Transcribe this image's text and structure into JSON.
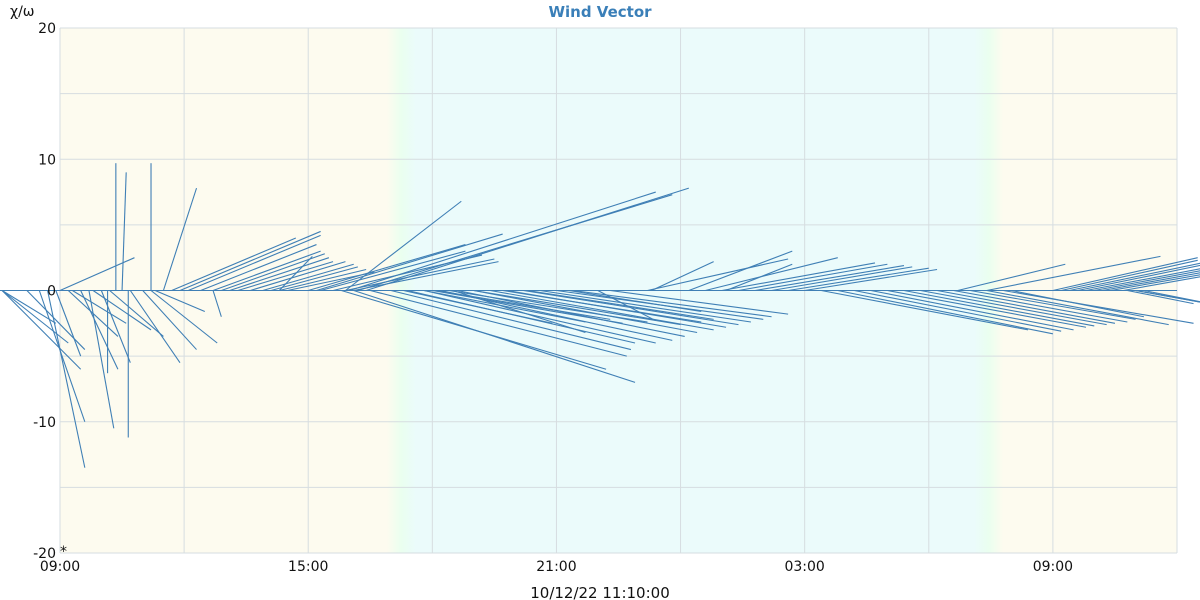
{
  "chart_data": {
    "type": "vector",
    "title": "Wind Vector",
    "ylabel": "χ/ω",
    "xlabel": "10/12/22 11:10:00",
    "corner_mark": "*",
    "ylim": [
      -20,
      20
    ],
    "y_ticks": [
      "20",
      "10",
      "0",
      "-10",
      "-20"
    ],
    "y_tick_values": [
      20,
      10,
      0,
      -10,
      -20
    ],
    "x_range_hours": [
      0,
      27
    ],
    "x_ticks": [
      "09:00",
      "15:00",
      "21:00",
      "03:00",
      "09:00"
    ],
    "x_tick_hours": [
      0,
      6,
      12,
      18,
      24
    ],
    "grid": true,
    "background_bands": [
      {
        "from": 0,
        "to": 7.9,
        "color": "#fdfbef"
      },
      {
        "from": 8.6,
        "to": 22.1,
        "color": "#ebfbfb"
      },
      {
        "from": 22.8,
        "to": 27,
        "color": "#fdfbef"
      }
    ],
    "line_color": "#3f7fb5",
    "vectors": [
      [
        -1.4,
        0,
        1.6,
        -4
      ],
      [
        -1.4,
        0,
        1.9,
        -6
      ],
      [
        -1.4,
        0,
        1.3,
        -2.5
      ],
      [
        -0.8,
        0,
        1.4,
        -4.5
      ],
      [
        -0.3,
        0,
        0.9,
        -13.5
      ],
      [
        -0.5,
        0,
        1.1,
        -10
      ],
      [
        -0.1,
        0,
        0.6,
        -5
      ],
      [
        0.2,
        0,
        1.2,
        -3.5
      ],
      [
        0.5,
        0,
        0.9,
        -6
      ],
      [
        0.3,
        0,
        1.3,
        -2.5
      ],
      [
        1.0,
        0,
        0.7,
        -5.5
      ],
      [
        0.8,
        0,
        1.4,
        -3
      ],
      [
        0.7,
        0,
        0.6,
        -10.5
      ],
      [
        1.2,
        0,
        1.3,
        -3.5
      ],
      [
        0,
        0,
        1.8,
        2.5
      ],
      [
        1.5,
        0,
        0.1,
        9
      ],
      [
        1.35,
        0,
        0,
        9.7
      ],
      [
        1.15,
        0,
        0,
        -6.3
      ],
      [
        1.65,
        0,
        0,
        -11.2
      ],
      [
        1.7,
        0,
        1.2,
        -5.5
      ],
      [
        2.0,
        0,
        1.3,
        -4.5
      ],
      [
        2.2,
        0,
        1.6,
        -4
      ],
      [
        2.2,
        0,
        0,
        9.7
      ],
      [
        2.5,
        0,
        0.8,
        7.8
      ],
      [
        2.7,
        0,
        3.0,
        4
      ],
      [
        2.9,
        0,
        3.4,
        4.5
      ],
      [
        3.1,
        0,
        3.2,
        4.2
      ],
      [
        3.4,
        0,
        2.8,
        3.5
      ],
      [
        3.7,
        0,
        2.6,
        3
      ],
      [
        3.9,
        0,
        2.5,
        2.8
      ],
      [
        4.1,
        0,
        2.4,
        2.5
      ],
      [
        4.3,
        0,
        2.3,
        2.2
      ],
      [
        4.6,
        0,
        2.3,
        2.2
      ],
      [
        4.9,
        0,
        2.2,
        2
      ],
      [
        5.1,
        0,
        2.1,
        1.8
      ],
      [
        5.3,
        0,
        2.1,
        1.6
      ],
      [
        5.5,
        0,
        2.1,
        1.4
      ],
      [
        5.3,
        0,
        0.8,
        2.6
      ],
      [
        6.2,
        0,
        4.5,
        4.3
      ],
      [
        6.0,
        0,
        3.8,
        3.5
      ],
      [
        6.3,
        0,
        3.5,
        3
      ],
      [
        6.6,
        0,
        3.6,
        2.7
      ],
      [
        6.9,
        0,
        3.6,
        2.4
      ],
      [
        7.1,
        0,
        3.5,
        2.2
      ],
      [
        6.9,
        0,
        2.8,
        6.8
      ],
      [
        7.0,
        0,
        7.4,
        7.5
      ],
      [
        7.2,
        0,
        7.6,
        7.3
      ],
      [
        7.4,
        0,
        7.8,
        7.8
      ],
      [
        6.8,
        0,
        6.4,
        -6
      ],
      [
        7.1,
        0,
        6.8,
        -7
      ],
      [
        7.5,
        0,
        6.2,
        -5
      ],
      [
        8.0,
        0,
        5.8,
        -4.5
      ],
      [
        8.4,
        0,
        5.5,
        -4
      ],
      [
        8.8,
        0,
        5.6,
        -4
      ],
      [
        9.2,
        0,
        5.6,
        -3.8
      ],
      [
        9.6,
        0,
        5.5,
        -3.5
      ],
      [
        10.0,
        0,
        5.4,
        -3.2
      ],
      [
        10.4,
        0,
        5.4,
        -3
      ],
      [
        10.8,
        0,
        5.3,
        -2.8
      ],
      [
        11.2,
        0,
        5.2,
        -2.6
      ],
      [
        11.6,
        0,
        5.1,
        -2.4
      ],
      [
        12.0,
        0,
        5.0,
        -2.2
      ],
      [
        12.4,
        0,
        4.8,
        -2
      ],
      [
        9.0,
        0,
        4.6,
        -2.5
      ],
      [
        9.4,
        0,
        4.8,
        -2.4
      ],
      [
        9.5,
        0,
        3.2,
        -3.2
      ],
      [
        10.0,
        0,
        5.0,
        -2.6
      ],
      [
        10.7,
        0,
        4.8,
        -2.4
      ],
      [
        11.3,
        0,
        4.5,
        -2.2
      ],
      [
        12.3,
        0,
        3.2,
        -1.6
      ],
      [
        13.3,
        0,
        4.3,
        -1.8
      ],
      [
        14.2,
        0,
        3.4,
        2.4
      ],
      [
        15.2,
        0,
        2.5,
        3
      ],
      [
        15.6,
        0,
        3.2,
        2.5
      ],
      [
        16.0,
        0,
        3.7,
        2.1
      ],
      [
        16.4,
        0,
        3.6,
        2
      ],
      [
        16.8,
        0,
        3.6,
        1.9
      ],
      [
        17.2,
        0,
        3.4,
        1.8
      ],
      [
        17.6,
        0,
        3.4,
        1.7
      ],
      [
        18.0,
        0,
        3.2,
        1.6
      ],
      [
        14.3,
        0,
        1.5,
        2.2
      ],
      [
        18.4,
        0,
        5.0,
        -3
      ],
      [
        18.8,
        0,
        5.2,
        -3.3
      ],
      [
        19.2,
        0,
        5.0,
        -3.1
      ],
      [
        19.6,
        0,
        4.9,
        -3
      ],
      [
        20.0,
        0,
        4.8,
        -2.8
      ],
      [
        20.4,
        0,
        4.6,
        -2.7
      ],
      [
        20.8,
        0,
        4.5,
        -2.6
      ],
      [
        21.2,
        0,
        4.3,
        -2.5
      ],
      [
        21.6,
        0,
        4.2,
        -2.4
      ],
      [
        22.0,
        0,
        4.0,
        -2.2
      ],
      [
        22.4,
        0,
        4.4,
        -2.6
      ],
      [
        22.8,
        0,
        4.6,
        -2.5
      ],
      [
        23.0,
        0,
        3.2,
        -2
      ],
      [
        21.7,
        0,
        2.6,
        2
      ],
      [
        22.4,
        0,
        4.2,
        2.6
      ],
      [
        24.0,
        0,
        3.5,
        2.5
      ],
      [
        24.2,
        0,
        3.3,
        2.3
      ],
      [
        24.4,
        0,
        3.2,
        2.1
      ],
      [
        24.6,
        0,
        3.1,
        2
      ],
      [
        24.8,
        0,
        3.0,
        1.8
      ],
      [
        25.0,
        0,
        2.9,
        1.7
      ],
      [
        25.2,
        0,
        2.8,
        1.6
      ],
      [
        25.4,
        0,
        2.7,
        1.5
      ],
      [
        25.7,
        0,
        2.5,
        1.4
      ],
      [
        26.0,
        0,
        3.0,
        -1.7
      ],
      [
        26.2,
        0,
        1.9,
        -1.2
      ],
      [
        25.8,
        0,
        1.6,
        -1
      ],
      [
        26.0,
        0,
        2.3,
        -1.3
      ],
      [
        25.8,
        0,
        0.0,
        0
      ],
      [
        16.1,
        0,
        1.6,
        2
      ],
      [
        13.0,
        0,
        1.4,
        -2.3
      ],
      [
        3.7,
        0,
        0.2,
        -2
      ],
      [
        2.3,
        0,
        1.2,
        -1.6
      ],
      [
        8.3,
        0,
        3.6,
        -2.5
      ],
      [
        8.8,
        0,
        3.9,
        -2.4
      ],
      [
        9.1,
        0,
        4.2,
        -2.2
      ]
    ]
  }
}
